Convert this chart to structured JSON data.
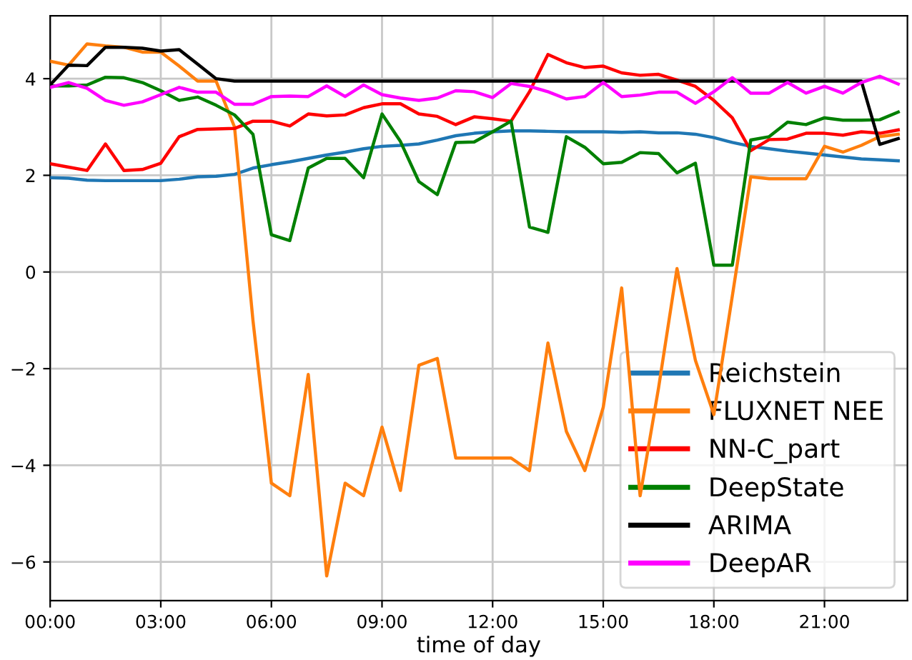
{
  "chart_data": {
    "type": "line",
    "xlabel": "time of day",
    "x": [
      0,
      0.5,
      1,
      1.5,
      2,
      2.5,
      3,
      3.5,
      4,
      4.5,
      5,
      5.5,
      6,
      6.5,
      7,
      7.5,
      8,
      8.5,
      9,
      9.5,
      10,
      10.5,
      11,
      11.5,
      12,
      12.5,
      13,
      13.5,
      14,
      14.5,
      15,
      15.5,
      16,
      16.5,
      17,
      17.5,
      18,
      18.5,
      19,
      19.5,
      20,
      20.5,
      21,
      21.5,
      22,
      22.5,
      23
    ],
    "xlim": [
      0,
      23.25
    ],
    "xticks": [
      {
        "value": 0,
        "label": "00:00"
      },
      {
        "value": 3,
        "label": "03:00"
      },
      {
        "value": 6,
        "label": "06:00"
      },
      {
        "value": 9,
        "label": "09:00"
      },
      {
        "value": 12,
        "label": "12:00"
      },
      {
        "value": 15,
        "label": "15:00"
      },
      {
        "value": 18,
        "label": "18:00"
      },
      {
        "value": 21,
        "label": "21:00"
      }
    ],
    "ylim": [
      -6.8,
      5.3
    ],
    "yticks": [
      {
        "value": -6,
        "label": "−6"
      },
      {
        "value": -4,
        "label": "−4"
      },
      {
        "value": -2,
        "label": "−2"
      },
      0,
      2,
      4
    ],
    "grid": true,
    "legend": "bottom right",
    "line_style": "solid",
    "series": [
      {
        "name": "Reichstein",
        "color": "#1f77b4",
        "values": [
          1.95,
          1.94,
          1.9,
          1.89,
          1.89,
          1.89,
          1.89,
          1.92,
          1.97,
          1.98,
          2.02,
          2.15,
          2.22,
          2.28,
          2.35,
          2.42,
          2.48,
          2.55,
          2.6,
          2.62,
          2.65,
          2.73,
          2.82,
          2.87,
          2.9,
          2.92,
          2.92,
          2.91,
          2.9,
          2.9,
          2.9,
          2.89,
          2.9,
          2.88,
          2.88,
          2.85,
          2.78,
          2.68,
          2.6,
          2.55,
          2.5,
          2.46,
          2.42,
          2.38,
          2.34,
          2.32,
          2.3
        ]
      },
      {
        "name": "FLUXNET NEE",
        "color": "#ff7f0e",
        "values": [
          4.36,
          4.28,
          4.72,
          4.68,
          4.65,
          4.55,
          4.55,
          4.26,
          3.95,
          3.95,
          3.0,
          -1.0,
          -4.37,
          -4.63,
          -2.12,
          -6.29,
          -4.37,
          -4.63,
          -3.21,
          -4.52,
          -1.93,
          -1.79,
          -3.85,
          -3.85,
          -3.85,
          -3.85,
          -4.11,
          -1.47,
          -3.3,
          -4.11,
          -2.8,
          -0.33,
          -4.63,
          -2.4,
          0.07,
          -1.83,
          -2.95,
          -0.5,
          1.97,
          1.93,
          1.93,
          1.93,
          2.6,
          2.48,
          2.62,
          2.8,
          2.85
        ]
      },
      {
        "name": "NN-C_part",
        "color": "#ff0000",
        "values": [
          2.24,
          2.17,
          2.1,
          2.65,
          2.1,
          2.12,
          2.25,
          2.8,
          2.95,
          2.96,
          2.97,
          3.12,
          3.12,
          3.02,
          3.27,
          3.23,
          3.25,
          3.4,
          3.48,
          3.48,
          3.27,
          3.22,
          3.05,
          3.21,
          3.17,
          3.12,
          3.73,
          4.5,
          4.33,
          4.23,
          4.26,
          4.12,
          4.07,
          4.09,
          3.97,
          3.84,
          3.55,
          3.19,
          2.51,
          2.74,
          2.75,
          2.87,
          2.87,
          2.83,
          2.9,
          2.87,
          2.94
        ]
      },
      {
        "name": "DeepState",
        "color": "#008000",
        "values": [
          3.85,
          3.85,
          3.87,
          4.03,
          4.02,
          3.92,
          3.75,
          3.55,
          3.62,
          3.45,
          3.25,
          2.85,
          0.77,
          0.65,
          2.15,
          2.35,
          2.35,
          1.95,
          3.27,
          2.7,
          1.87,
          1.6,
          2.68,
          2.69,
          2.9,
          3.12,
          0.93,
          0.82,
          2.8,
          2.58,
          2.24,
          2.27,
          2.47,
          2.45,
          2.05,
          2.25,
          0.14,
          0.14,
          2.73,
          2.8,
          3.1,
          3.05,
          3.19,
          3.14,
          3.14,
          3.15,
          3.31
        ]
      },
      {
        "name": "ARIMA",
        "color": "#000000",
        "values": [
          3.87,
          4.28,
          4.27,
          4.65,
          4.65,
          4.63,
          4.57,
          4.6,
          4.3,
          4.0,
          3.95,
          3.95,
          3.95,
          3.95,
          3.95,
          3.95,
          3.95,
          3.95,
          3.95,
          3.95,
          3.95,
          3.95,
          3.95,
          3.95,
          3.95,
          3.95,
          3.95,
          3.95,
          3.95,
          3.95,
          3.95,
          3.95,
          3.95,
          3.95,
          3.95,
          3.95,
          3.95,
          3.95,
          3.95,
          3.95,
          3.95,
          3.95,
          3.95,
          3.95,
          3.95,
          2.64,
          2.76
        ]
      },
      {
        "name": "DeepAR",
        "color": "#ff00ff",
        "values": [
          3.82,
          3.92,
          3.8,
          3.55,
          3.45,
          3.52,
          3.67,
          3.82,
          3.72,
          3.72,
          3.47,
          3.47,
          3.63,
          3.64,
          3.63,
          3.85,
          3.63,
          3.87,
          3.67,
          3.6,
          3.55,
          3.6,
          3.75,
          3.73,
          3.61,
          3.9,
          3.84,
          3.73,
          3.58,
          3.63,
          3.92,
          3.63,
          3.66,
          3.72,
          3.72,
          3.49,
          3.73,
          4.02,
          3.7,
          3.7,
          3.92,
          3.7,
          3.84,
          3.7,
          3.92,
          4.05,
          3.89
        ]
      }
    ]
  }
}
